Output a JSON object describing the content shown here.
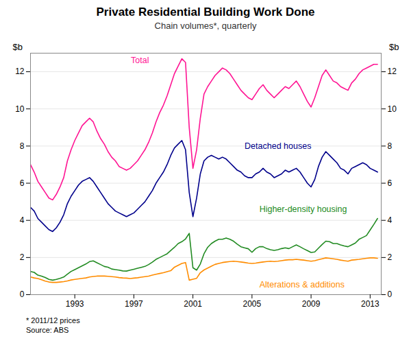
{
  "chart_data": {
    "type": "line",
    "title": "Private Residential Building Work Done",
    "subtitle": "Chain volumes*, quarterly",
    "footnote": "*  2011/12 prices\nSource: ABS",
    "ylabel": "$b",
    "y2label": "$b",
    "xlim": [
      1990.0,
      2013.75
    ],
    "xticks": [
      1993,
      1997,
      2001,
      2005,
      2009,
      2013
    ],
    "ylim": [
      0,
      13.0
    ],
    "yticks": [
      0,
      2,
      4,
      6,
      8,
      10,
      12
    ],
    "y2lim": [
      0,
      13.0
    ],
    "y2ticks": [
      0,
      2,
      4,
      6,
      8,
      10,
      12
    ],
    "grid": true,
    "legend": false,
    "x": [
      1990.0,
      1990.25,
      1990.5,
      1990.75,
      1991.0,
      1991.25,
      1991.5,
      1991.75,
      1992.0,
      1992.25,
      1992.5,
      1992.75,
      1993.0,
      1993.25,
      1993.5,
      1993.75,
      1994.0,
      1994.25,
      1994.5,
      1994.75,
      1995.0,
      1995.25,
      1995.5,
      1995.75,
      1996.0,
      1996.25,
      1996.5,
      1996.75,
      1997.0,
      1997.25,
      1997.5,
      1997.75,
      1998.0,
      1998.25,
      1998.5,
      1998.75,
      1999.0,
      1999.25,
      1999.5,
      1999.75,
      2000.0,
      2000.25,
      2000.5,
      2000.75,
      2001.0,
      2001.25,
      2001.5,
      2001.75,
      2002.0,
      2002.25,
      2002.5,
      2002.75,
      2003.0,
      2003.25,
      2003.5,
      2003.75,
      2004.0,
      2004.25,
      2004.5,
      2004.75,
      2005.0,
      2005.25,
      2005.5,
      2005.75,
      2006.0,
      2006.25,
      2006.5,
      2006.75,
      2007.0,
      2007.25,
      2007.5,
      2007.75,
      2008.0,
      2008.25,
      2008.5,
      2008.75,
      2009.0,
      2009.25,
      2009.5,
      2009.75,
      2010.0,
      2010.25,
      2010.5,
      2010.75,
      2011.0,
      2011.25,
      2011.5,
      2011.75,
      2012.0,
      2012.25,
      2012.5,
      2012.75,
      2013.0,
      2013.25,
      2013.5
    ],
    "series": [
      {
        "name": "Total",
        "color": "#FF1493",
        "values": [
          7.0,
          6.6,
          6.1,
          5.8,
          5.5,
          5.2,
          5.1,
          5.4,
          5.8,
          6.3,
          7.2,
          7.8,
          8.3,
          8.7,
          9.1,
          9.3,
          9.5,
          9.3,
          8.8,
          8.4,
          8.1,
          7.7,
          7.4,
          7.2,
          6.9,
          6.8,
          6.7,
          6.8,
          7.0,
          7.2,
          7.5,
          7.8,
          8.2,
          8.7,
          9.3,
          9.8,
          10.2,
          10.7,
          11.3,
          11.9,
          12.3,
          12.7,
          12.5,
          9.0,
          6.8,
          7.8,
          9.5,
          10.8,
          11.2,
          11.5,
          11.8,
          12.0,
          12.2,
          12.1,
          11.9,
          11.6,
          11.3,
          11.0,
          10.8,
          10.6,
          10.5,
          10.8,
          11.1,
          11.3,
          11.0,
          10.8,
          10.6,
          10.8,
          11.0,
          11.2,
          11.1,
          11.3,
          11.5,
          11.2,
          10.8,
          10.4,
          10.1,
          10.6,
          11.2,
          11.8,
          12.1,
          11.8,
          11.5,
          11.4,
          11.2,
          11.1,
          11.0,
          11.4,
          11.6,
          11.9,
          12.1,
          12.2,
          12.3,
          12.4,
          12.4
        ]
      },
      {
        "name": "Detached houses",
        "color": "#00008B",
        "values": [
          4.7,
          4.5,
          4.1,
          3.9,
          3.7,
          3.5,
          3.4,
          3.6,
          3.9,
          4.3,
          4.9,
          5.3,
          5.6,
          5.9,
          6.1,
          6.2,
          6.3,
          6.1,
          5.8,
          5.5,
          5.2,
          4.9,
          4.7,
          4.5,
          4.4,
          4.3,
          4.2,
          4.3,
          4.4,
          4.6,
          4.8,
          5.0,
          5.3,
          5.6,
          6.0,
          6.3,
          6.6,
          7.0,
          7.5,
          7.9,
          8.1,
          8.3,
          7.8,
          5.5,
          4.2,
          5.2,
          6.5,
          7.2,
          7.4,
          7.5,
          7.4,
          7.3,
          7.4,
          7.3,
          7.1,
          6.9,
          6.7,
          6.6,
          6.4,
          6.3,
          6.3,
          6.5,
          6.6,
          6.8,
          6.6,
          6.5,
          6.3,
          6.4,
          6.5,
          6.7,
          6.6,
          6.7,
          6.8,
          6.6,
          6.3,
          6.0,
          5.8,
          6.2,
          6.9,
          7.4,
          7.7,
          7.5,
          7.3,
          7.1,
          6.8,
          6.7,
          6.5,
          6.8,
          6.9,
          7.0,
          7.1,
          7.0,
          6.8,
          6.7,
          6.6
        ]
      },
      {
        "name": "Higher-density housing",
        "color": "#228B22",
        "values": [
          1.25,
          1.2,
          1.05,
          1.0,
          0.92,
          0.82,
          0.78,
          0.82,
          0.88,
          0.95,
          1.1,
          1.25,
          1.35,
          1.45,
          1.55,
          1.65,
          1.78,
          1.82,
          1.72,
          1.62,
          1.52,
          1.48,
          1.38,
          1.35,
          1.32,
          1.28,
          1.27,
          1.32,
          1.37,
          1.42,
          1.47,
          1.52,
          1.62,
          1.75,
          1.9,
          2.0,
          2.1,
          2.2,
          2.38,
          2.55,
          2.75,
          2.85,
          3.0,
          3.3,
          1.45,
          1.32,
          1.65,
          2.2,
          2.55,
          2.75,
          2.88,
          2.98,
          2.98,
          3.05,
          2.98,
          2.88,
          2.72,
          2.58,
          2.52,
          2.47,
          2.28,
          2.48,
          2.58,
          2.58,
          2.48,
          2.42,
          2.38,
          2.42,
          2.48,
          2.52,
          2.48,
          2.58,
          2.68,
          2.58,
          2.47,
          2.37,
          2.27,
          2.3,
          2.5,
          2.7,
          2.88,
          2.85,
          2.75,
          2.75,
          2.68,
          2.62,
          2.58,
          2.68,
          2.78,
          2.98,
          3.08,
          3.18,
          3.48,
          3.78,
          4.1
        ]
      },
      {
        "name": "Alterations & additions",
        "color": "#FF8C00",
        "values": [
          0.95,
          0.9,
          0.87,
          0.8,
          0.73,
          0.68,
          0.66,
          0.66,
          0.68,
          0.7,
          0.74,
          0.79,
          0.82,
          0.85,
          0.88,
          0.9,
          0.95,
          0.98,
          1.0,
          1.0,
          1.0,
          0.99,
          0.97,
          0.95,
          0.92,
          0.9,
          0.89,
          0.87,
          0.89,
          0.91,
          0.94,
          0.97,
          1.0,
          1.05,
          1.1,
          1.14,
          1.18,
          1.24,
          1.29,
          1.48,
          1.58,
          1.68,
          1.73,
          0.78,
          0.83,
          0.88,
          1.18,
          1.33,
          1.43,
          1.53,
          1.63,
          1.68,
          1.73,
          1.76,
          1.78,
          1.8,
          1.78,
          1.76,
          1.73,
          1.7,
          1.68,
          1.7,
          1.73,
          1.76,
          1.78,
          1.8,
          1.78,
          1.8,
          1.83,
          1.86,
          1.88,
          1.88,
          1.9,
          1.88,
          1.86,
          1.83,
          1.8,
          1.83,
          1.88,
          1.93,
          1.98,
          1.96,
          1.93,
          1.9,
          1.86,
          1.83,
          1.8,
          1.86,
          1.88,
          1.9,
          1.93,
          1.96,
          1.98,
          1.98,
          1.96
        ]
      }
    ],
    "annotations": [
      {
        "text": "Total",
        "x": 1996.8,
        "y": 12.6,
        "color": "#FF1493"
      },
      {
        "text": "Detached houses",
        "x": 2004.5,
        "y": 8.0,
        "color": "#00008B"
      },
      {
        "text": "Higher-density housing",
        "x": 2005.5,
        "y": 4.6,
        "color": "#228B22"
      },
      {
        "text": "Alterations & additions",
        "x": 2005.5,
        "y": 0.55,
        "color": "#FF8C00"
      }
    ]
  }
}
